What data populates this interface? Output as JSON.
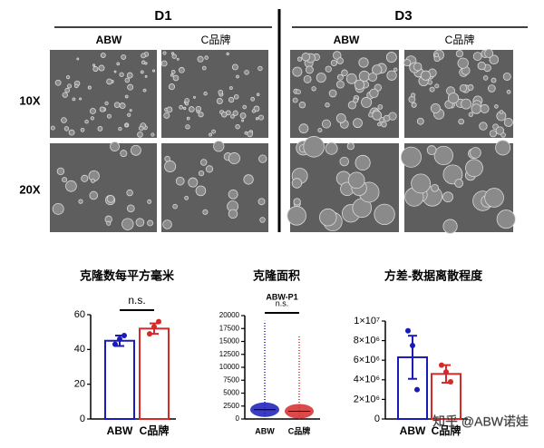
{
  "figure": {
    "days": [
      "D1",
      "D3"
    ],
    "columns": [
      "ABW",
      "C品牌",
      "ABW",
      "C品牌"
    ],
    "rows": [
      "10X",
      "20X"
    ],
    "watermark": "知乎 @ABW诺娃"
  },
  "chart_data": [
    {
      "type": "bar",
      "title": "克隆数每平方毫米",
      "annotation": "n.s.",
      "categories": [
        "ABW",
        "C品牌"
      ],
      "colors": [
        "#1a1ab8",
        "#d42a2a"
      ],
      "values": [
        45,
        52
      ],
      "errors": [
        3,
        3
      ],
      "points": [
        [
          43,
          46,
          48
        ],
        [
          49,
          53,
          56
        ]
      ],
      "ylim": [
        0,
        60
      ],
      "yticks": [
        0,
        20,
        40,
        60
      ]
    },
    {
      "type": "strip",
      "title": "克隆面积",
      "subtitle": "ABW-P1",
      "annotation": "n.s.",
      "categories": [
        "ABW",
        "C品牌"
      ],
      "colors": [
        "#1a1ab8",
        "#d42a2a"
      ],
      "medians": [
        1800,
        1500
      ],
      "maxima": [
        19000,
        16000
      ],
      "ylim": [
        0,
        20000
      ],
      "yticks": [
        0,
        2500,
        5000,
        7500,
        10000,
        12500,
        15000,
        17500,
        20000
      ]
    },
    {
      "type": "bar",
      "title": "方差-数据离散程度",
      "categories": [
        "ABW",
        "C品牌"
      ],
      "colors": [
        "#1a1ab8",
        "#d42a2a"
      ],
      "values": [
        6300000,
        4600000
      ],
      "errors": [
        2200000,
        900000
      ],
      "points": [
        [
          9000000,
          7500000,
          3000000
        ],
        [
          5500000,
          4800000,
          3800000
        ]
      ],
      "ylim": [
        0,
        10000000
      ],
      "yticks": [
        0,
        {
          "value": 2000000,
          "label": "2×10⁶"
        },
        {
          "value": 4000000,
          "label": "4×10⁶"
        },
        {
          "value": 6000000,
          "label": "6×10⁶"
        },
        {
          "value": 8000000,
          "label": "8×10⁶"
        },
        {
          "value": 10000000,
          "label": "1×10⁷"
        }
      ]
    }
  ]
}
